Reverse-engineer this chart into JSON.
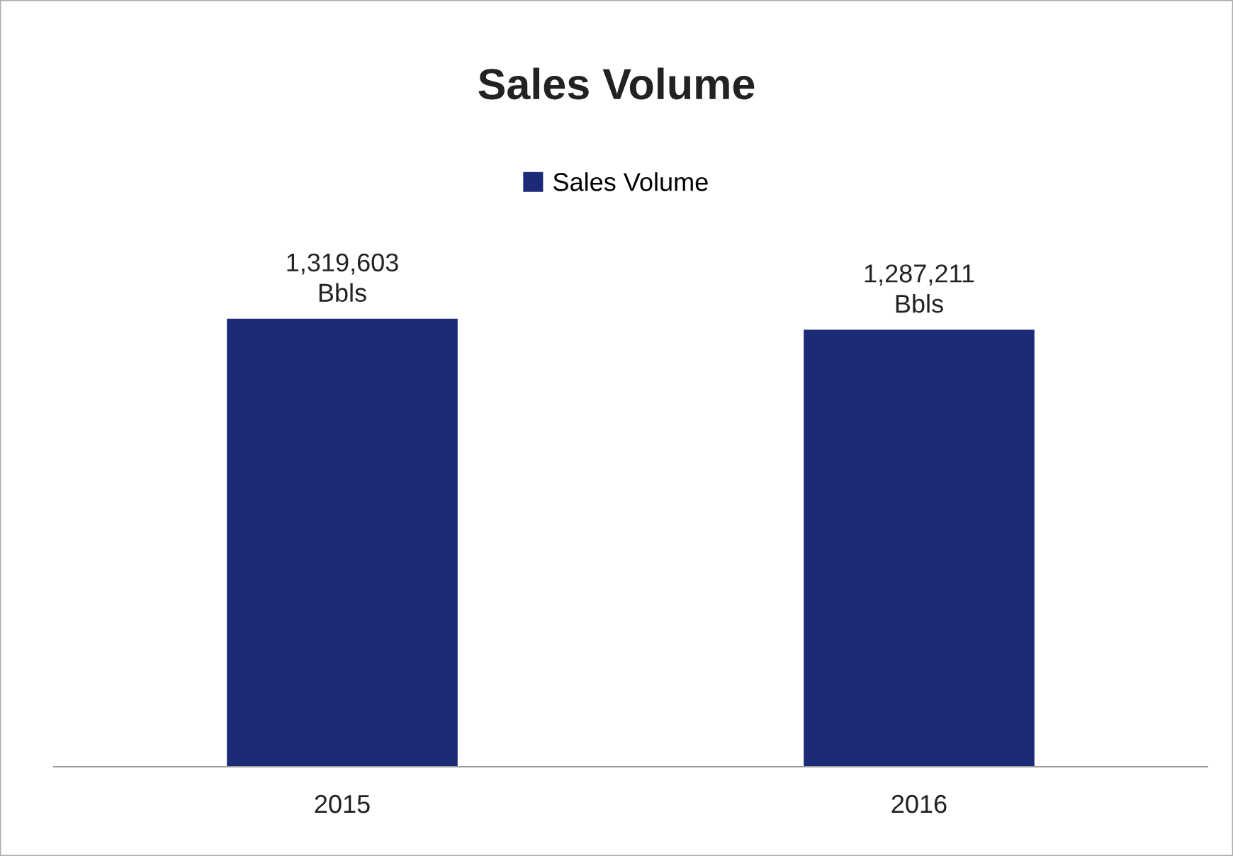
{
  "chart_data": {
    "type": "bar",
    "title": "Sales Volume",
    "categories": [
      "2015",
      "2016"
    ],
    "series": [
      {
        "name": "Sales Volume",
        "color": "#1c2a78",
        "values": [
          1319603,
          1287211
        ],
        "value_labels": [
          "1,319,603\nBbls",
          "1,287,211\nBbls"
        ]
      }
    ],
    "legend": "top",
    "grid": false
  }
}
